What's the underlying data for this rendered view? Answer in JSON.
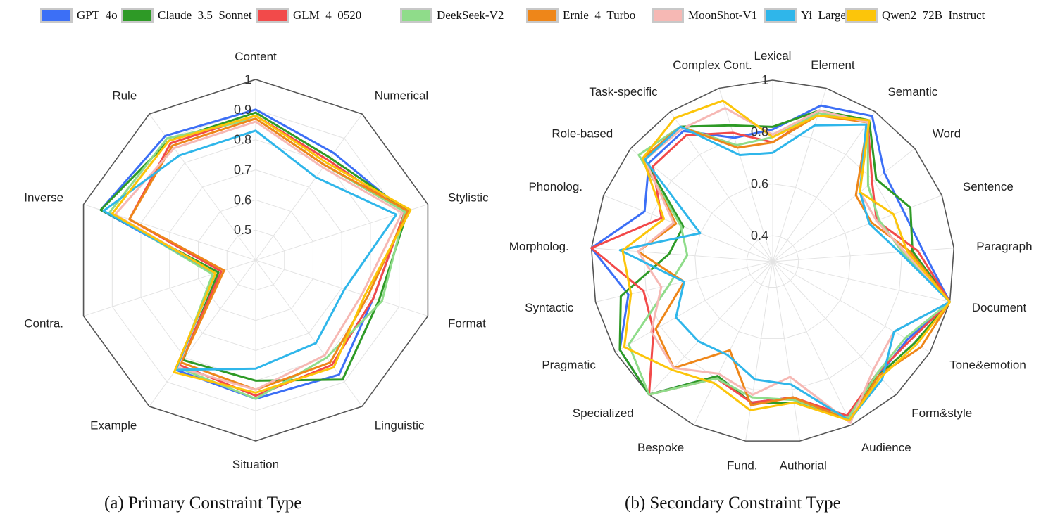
{
  "legend": [
    {
      "name": "GPT_4o",
      "color": "#3c6ff6"
    },
    {
      "name": "Claude_3.5_Sonnet",
      "color": "#2e9a26"
    },
    {
      "name": "GLM_4_0520",
      "color": "#f24a4a"
    },
    {
      "name": "DeekSeek-V2",
      "color": "#8fdc8a"
    },
    {
      "name": "Ernie_4_Turbo",
      "color": "#ee8619"
    },
    {
      "name": "MoonShot-V1",
      "color": "#f6b8b4"
    },
    {
      "name": "Yi_Large",
      "color": "#2fb6ea"
    },
    {
      "name": "Qwen2_72B_Instruct",
      "color": "#fcc50a"
    }
  ],
  "captions": {
    "a": "(a) Primary Constraint Type",
    "b": "(b) Secondary Constraint Type"
  },
  "chart_data": [
    {
      "type": "radar",
      "title": "(a) Primary Constraint Type",
      "categories": [
        "Content",
        "Numerical",
        "Stylistic",
        "Format",
        "Linguistic",
        "Situation",
        "Example",
        "Contra.",
        "Inverse",
        "Rule"
      ],
      "rlim": [
        0.4,
        1
      ],
      "radial_ticks": [
        0.5,
        0.6,
        0.7,
        0.8,
        0.9,
        1
      ],
      "radial_tick_labels": [
        "0.5",
        "0.6",
        "0.7",
        "0.8",
        "0.9",
        "1"
      ],
      "grid": true,
      "series": [
        {
          "name": "GPT_4o",
          "values": [
            0.9,
            0.84,
            0.92,
            0.81,
            0.87,
            0.86,
            0.85,
            0.54,
            0.94,
            0.91
          ]
        },
        {
          "name": "Claude_3.5_Sonnet",
          "values": [
            0.89,
            0.82,
            0.93,
            0.83,
            0.89,
            0.8,
            0.81,
            0.53,
            0.94,
            0.89
          ]
        },
        {
          "name": "GLM_4_0520",
          "values": [
            0.88,
            0.81,
            0.92,
            0.81,
            0.83,
            0.85,
            0.83,
            0.52,
            0.84,
            0.88
          ]
        },
        {
          "name": "DeekSeek-V2",
          "values": [
            0.87,
            0.79,
            0.92,
            0.84,
            0.8,
            0.86,
            0.84,
            0.55,
            0.91,
            0.9
          ]
        },
        {
          "name": "Ernie_4_Turbo",
          "values": [
            0.87,
            0.79,
            0.93,
            0.79,
            0.82,
            0.83,
            0.82,
            0.51,
            0.84,
            0.87
          ]
        },
        {
          "name": "MoonShot-V1",
          "values": [
            0.86,
            0.78,
            0.91,
            0.77,
            0.79,
            0.83,
            0.84,
            0.54,
            0.89,
            0.86
          ]
        },
        {
          "name": "Yi_Large",
          "values": [
            0.83,
            0.74,
            0.89,
            0.71,
            0.74,
            0.76,
            0.85,
            0.54,
            0.93,
            0.83
          ]
        },
        {
          "name": "Qwen2_72B_Instruct",
          "values": [
            0.88,
            0.8,
            0.94,
            0.78,
            0.84,
            0.84,
            0.86,
            0.54,
            0.9,
            0.89
          ]
        }
      ]
    },
    {
      "type": "radar",
      "title": "(b) Secondary Constraint Type",
      "categories": [
        "Lexical",
        "Element",
        "Semantic",
        "Word",
        "Sentence",
        "Paragraph",
        "Document",
        "Tone&emotion",
        "Form&style",
        "Audience",
        "Authorial",
        "Fund.",
        "Bespoke",
        "Specialized",
        "Pragmatic",
        "Syntactic",
        "Morpholog.",
        "Phonolog.",
        "Role-based",
        "Task-specific",
        "Complex Cont."
      ],
      "rlim": [
        0.3,
        1
      ],
      "radial_ticks": [
        0.4,
        0.6,
        0.8,
        1
      ],
      "radial_tick_labels": [
        "0.4",
        "0.6",
        "0.8",
        "1"
      ],
      "grid": true,
      "series": [
        {
          "name": "GPT_4o",
          "values": [
            0.81,
            0.93,
            0.98,
            0.85,
            0.84,
            0.88,
            1.0,
            0.9,
            0.9,
            0.98,
            0.83,
            0.85,
            0.79,
            1.0,
            0.98,
            0.87,
            1.0,
            0.83,
            0.91,
            0.91,
            0.8
          ]
        },
        {
          "name": "Claude_3.5_Sonnet",
          "values": [
            0.82,
            0.91,
            0.96,
            0.81,
            0.87,
            0.84,
            1.0,
            0.93,
            0.9,
            0.96,
            0.85,
            0.85,
            0.79,
            1.0,
            0.98,
            0.9,
            0.7,
            0.67,
            0.93,
            0.93,
            0.85
          ]
        },
        {
          "name": "GLM_4_0520",
          "values": [
            0.76,
            0.9,
            0.95,
            0.79,
            0.73,
            0.86,
            1.0,
            0.91,
            0.89,
            0.96,
            0.83,
            0.85,
            0.8,
            1.0,
            0.83,
            0.81,
            1.0,
            0.76,
            0.89,
            0.89,
            0.82
          ]
        },
        {
          "name": "DeekSeek-V2",
          "values": [
            0.78,
            0.9,
            0.95,
            0.77,
            0.74,
            0.8,
            1.0,
            0.89,
            0.89,
            0.97,
            0.84,
            0.83,
            0.8,
            1.0,
            0.94,
            0.71,
            0.63,
            0.68,
            0.96,
            0.93,
            0.77
          ]
        },
        {
          "name": "Ernie_4_Turbo",
          "values": [
            0.76,
            0.89,
            0.95,
            0.71,
            0.71,
            0.83,
            1.0,
            0.96,
            0.9,
            0.98,
            0.83,
            0.86,
            0.68,
            0.86,
            0.82,
            0.65,
            0.82,
            0.7,
            0.94,
            0.93,
            0.76
          ]
        },
        {
          "name": "MoonShot-V1",
          "values": [
            0.79,
            0.91,
            0.95,
            0.73,
            0.73,
            0.81,
            1.0,
            0.84,
            0.87,
            0.99,
            0.75,
            0.82,
            0.78,
            0.86,
            0.84,
            0.74,
            0.82,
            0.71,
            0.93,
            0.92,
            0.92
          ]
        },
        {
          "name": "Yi_Large",
          "values": [
            0.72,
            0.85,
            0.94,
            0.73,
            0.7,
            0.79,
            1.0,
            0.84,
            0.92,
            0.98,
            0.78,
            0.76,
            0.7,
            0.72,
            0.73,
            0.65,
            0.89,
            0.6,
            0.93,
            0.93,
            0.73
          ]
        },
        {
          "name": "Qwen2_72B_Instruct",
          "values": [
            0.78,
            0.89,
            0.96,
            0.73,
            0.8,
            0.82,
            1.0,
            0.94,
            0.91,
            0.98,
            0.85,
            0.88,
            0.82,
            0.87,
            0.96,
            0.86,
            0.88,
            0.75,
            0.94,
            0.97,
            0.95
          ]
        }
      ]
    }
  ]
}
